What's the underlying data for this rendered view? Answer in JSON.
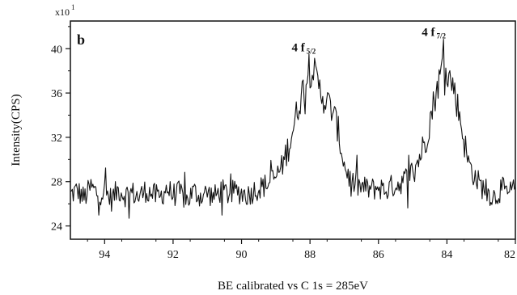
{
  "chart_data": {
    "type": "line",
    "panel_label": "b",
    "xlabel": "BE calibrated vs C 1s = 285eV",
    "ylabel": "Intensity(CPS)",
    "y_scale_factor": {
      "base": "x10",
      "exponent": "1"
    },
    "x_reversed": true,
    "xlim": [
      95,
      82
    ],
    "ylim": [
      22.8,
      42.5
    ],
    "x_ticks": [
      94,
      92,
      90,
      88,
      86,
      84,
      82
    ],
    "y_ticks": [
      24,
      28,
      32,
      36,
      40
    ],
    "grid": false,
    "legend": "none",
    "line_color": "#111111",
    "annotations": [
      {
        "text": "4 f",
        "sub": "5/2",
        "x": 87.9,
        "y": 39.6
      },
      {
        "text": "4 f",
        "sub": "7/2",
        "x": 84.1,
        "y": 41.0
      }
    ],
    "series": [
      {
        "x": [
          95.0,
          94.8,
          94.6,
          94.4,
          94.2,
          94.0,
          93.8,
          93.6,
          93.4,
          93.2,
          93.0,
          92.8,
          92.6,
          92.4,
          92.2,
          92.0,
          91.8,
          91.6,
          91.4,
          91.2,
          91.0,
          90.8,
          90.6,
          90.4,
          90.2,
          90.0,
          89.8,
          89.6,
          89.4,
          89.2,
          89.0,
          88.8,
          88.6,
          88.4,
          88.2,
          88.0,
          87.9,
          87.8,
          87.6,
          87.4,
          87.2,
          87.0,
          86.8,
          86.6,
          86.4,
          86.2,
          86.0,
          85.8,
          85.6,
          85.4,
          85.2,
          85.0,
          84.8,
          84.6,
          84.4,
          84.2,
          84.1,
          84.0,
          83.8,
          83.6,
          83.4,
          83.2,
          83.0,
          82.8,
          82.6,
          82.4,
          82.2,
          82.0
        ],
        "y": [
          26.8,
          27.2,
          26.5,
          27.5,
          26.9,
          27.1,
          26.4,
          27.3,
          26.8,
          27.0,
          26.6,
          27.2,
          26.9,
          26.5,
          27.4,
          26.8,
          27.0,
          26.3,
          27.1,
          26.7,
          27.0,
          26.6,
          27.2,
          26.9,
          27.1,
          27.0,
          26.8,
          27.3,
          27.5,
          27.9,
          28.4,
          29.5,
          31.5,
          34.0,
          36.5,
          37.8,
          38.2,
          37.0,
          35.5,
          34.8,
          33.0,
          29.5,
          28.0,
          27.6,
          27.4,
          27.3,
          27.5,
          27.2,
          27.6,
          27.8,
          28.3,
          29.0,
          30.2,
          32.0,
          35.0,
          37.5,
          39.0,
          38.0,
          36.5,
          33.5,
          30.0,
          28.5,
          27.6,
          27.0,
          26.6,
          27.4,
          26.8,
          27.5
        ]
      }
    ]
  }
}
